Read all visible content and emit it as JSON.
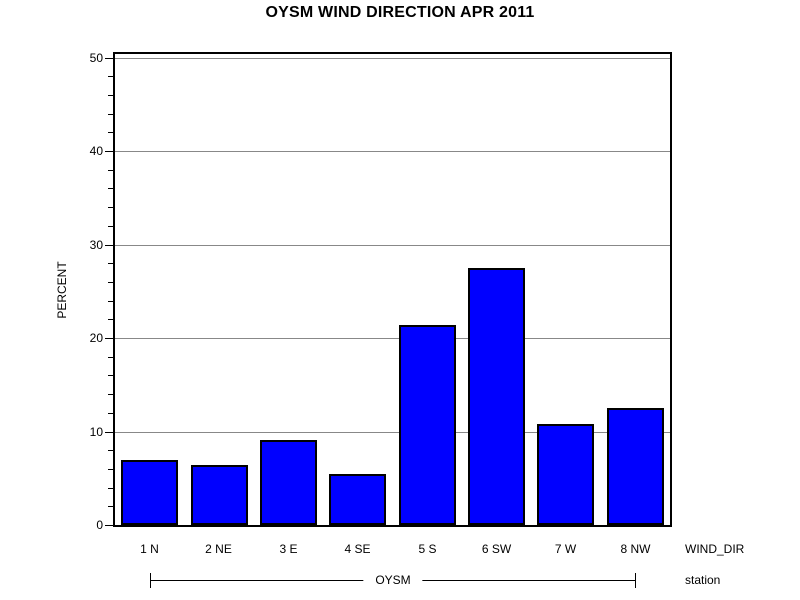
{
  "title": "OYSM WIND DIRECTION APR 2011",
  "colors": {
    "bar_fill": "#0000ff",
    "bar_border": "#000000",
    "gridline": "#888888",
    "axis": "#000000",
    "background": "#ffffff"
  },
  "chart_data": {
    "type": "bar",
    "title": "OYSM WIND DIRECTION APR 2011",
    "categories": [
      "1 N",
      "2 NE",
      "3 E",
      "4 SE",
      "5 S",
      "6 SW",
      "7 W",
      "8 NW"
    ],
    "values": [
      6.9,
      6.4,
      9.1,
      5.5,
      21.4,
      27.5,
      10.8,
      12.5
    ],
    "xlabel": "WIND_DIR",
    "ylabel": "PERCENT",
    "ylim": [
      0,
      50
    ],
    "y_major_ticks": [
      0,
      10,
      20,
      30,
      40,
      50
    ],
    "y_minor_tick_interval": 2,
    "grid": true,
    "legend_position": "none",
    "group_label": "OYSM",
    "group_axis_label": "station",
    "bar_color": "#0000ff"
  }
}
